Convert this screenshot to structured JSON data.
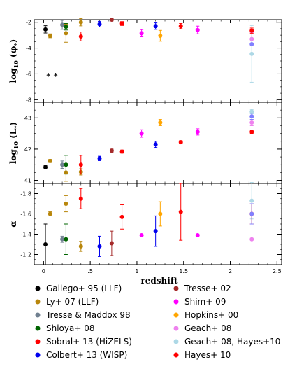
{
  "chart_data": [
    {
      "type": "scatter",
      "ylabel": "log10(φ*)",
      "ylim": [
        -8.2,
        -1.8
      ],
      "yticks": [
        -8,
        -6,
        -4,
        -2
      ],
      "tick_labels": [
        "-8",
        "-6",
        "-4",
        "-2"
      ],
      "annotation": "* *",
      "series": [
        {
          "name": "Gallego+ 95 (LLF)",
          "color": "#000000",
          "points": [
            {
              "x": 0.02,
              "y": -2.55,
              "err": 0.28
            }
          ]
        },
        {
          "name": "Ly+ 07 (LLF)",
          "color": "#b8860b",
          "points": [
            {
              "x": 0.07,
              "y": -3.05,
              "err": 0.15
            },
            {
              "x": 0.24,
              "y": -2.85,
              "err": 0.7
            },
            {
              "x": 0.4,
              "y": -2.0,
              "err": 0.28
            }
          ]
        },
        {
          "name": "Tresse & Maddox 98",
          "color": "#708090",
          "points": [
            {
              "x": 0.2,
              "y": -2.2,
              "err": 0.35
            }
          ]
        },
        {
          "name": "Shioya+ 08",
          "color": "#006400",
          "points": [
            {
              "x": 0.24,
              "y": -2.35,
              "err": 0.25
            }
          ]
        },
        {
          "name": "Sobral+ 13 (HiZELS)",
          "color": "#ff0000",
          "points": [
            {
              "x": 0.4,
              "y": -3.1,
              "err": 0.35
            },
            {
              "x": 0.84,
              "y": -2.1,
              "err": 0.15
            },
            {
              "x": 1.47,
              "y": -2.3,
              "err": 0.2
            }
          ]
        },
        {
          "name": "Colbert+ 13 (WISP)",
          "color": "#0000ee",
          "points": [
            {
              "x": 0.6,
              "y": -2.15,
              "err": 0.22
            },
            {
              "x": 1.2,
              "y": -2.3,
              "err": 0.25
            }
          ]
        },
        {
          "name": "Tresse+ 02",
          "color": "#a52a2a",
          "points": [
            {
              "x": 0.73,
              "y": -1.8,
              "err": 0.1
            }
          ]
        },
        {
          "name": "Shim+ 09",
          "color": "#ff00ff",
          "points": [
            {
              "x": 1.05,
              "y": -2.85,
              "err": 0.28
            },
            {
              "x": 1.65,
              "y": -2.6,
              "err": 0.3
            }
          ]
        },
        {
          "name": "Hopkins+ 00",
          "color": "#ffa500",
          "points": [
            {
              "x": 1.25,
              "y": -3.05,
              "err": 0.42
            }
          ]
        },
        {
          "name": "Geach+ 08",
          "color": "#ee82ee",
          "points": [
            {
              "x": 2.23,
              "y": -3.3,
              "err": 0.5
            }
          ]
        },
        {
          "name": "Geach+ 08, Hayes+10",
          "color": "#add8e6",
          "points": [
            {
              "x": 2.23,
              "y": -4.45,
              "err": 2.2
            }
          ]
        },
        {
          "name": "Hayes+ 10",
          "color": "#ff0000",
          "points": [
            {
              "x": 2.23,
              "y": -2.65,
              "err": 0.2
            }
          ]
        },
        {
          "name": "",
          "color": "#8080ff",
          "points": [
            {
              "x": 2.23,
              "y": -3.7,
              "err": 0.0
            }
          ]
        }
      ]
    },
    {
      "type": "scatter",
      "ylabel": "log10(L*)",
      "ylim": [
        40.9,
        43.5
      ],
      "yticks": [
        41,
        42,
        43
      ],
      "tick_labels": [
        "41",
        "42",
        "43"
      ],
      "series": [
        {
          "name": "Gallego+ 95 (LLF)",
          "color": "#000000",
          "points": [
            {
              "x": 0.02,
              "y": 41.42,
              "err": 0.05
            }
          ]
        },
        {
          "name": "Ly+ 07 (LLF)",
          "color": "#b8860b",
          "points": [
            {
              "x": 0.07,
              "y": 41.62,
              "err": 0.05
            },
            {
              "x": 0.24,
              "y": 41.25,
              "err": 0.28
            },
            {
              "x": 0.4,
              "y": 41.27,
              "err": 0.1
            }
          ]
        },
        {
          "name": "Tresse & Maddox 98",
          "color": "#708090",
          "points": [
            {
              "x": 0.2,
              "y": 41.5,
              "err": 0.12
            }
          ]
        },
        {
          "name": "Shioya+ 08",
          "color": "#006400",
          "points": [
            {
              "x": 0.24,
              "y": 41.5,
              "err": 0.3
            }
          ]
        },
        {
          "name": "Sobral+ 13 (HiZELS)",
          "color": "#ff0000",
          "points": [
            {
              "x": 0.4,
              "y": 41.5,
              "err": 0.3
            },
            {
              "x": 0.84,
              "y": 41.92,
              "err": 0.05
            },
            {
              "x": 1.47,
              "y": 42.22,
              "err": 0.05
            }
          ]
        },
        {
          "name": "Colbert+ 13 (WISP)",
          "color": "#0000ee",
          "points": [
            {
              "x": 0.6,
              "y": 41.7,
              "err": 0.07
            },
            {
              "x": 1.2,
              "y": 42.15,
              "err": 0.1
            }
          ]
        },
        {
          "name": "Tresse+ 02",
          "color": "#a52a2a",
          "points": [
            {
              "x": 0.73,
              "y": 41.95,
              "err": 0.05
            }
          ]
        },
        {
          "name": "Shim+ 09",
          "color": "#ff00ff",
          "points": [
            {
              "x": 1.05,
              "y": 42.5,
              "err": 0.12
            },
            {
              "x": 1.65,
              "y": 42.55,
              "err": 0.1
            }
          ]
        },
        {
          "name": "Hopkins+ 00",
          "color": "#ffa500",
          "points": [
            {
              "x": 1.25,
              "y": 42.85,
              "err": 0.1
            }
          ]
        },
        {
          "name": "Geach+ 08",
          "color": "#ee82ee",
          "points": [
            {
              "x": 2.23,
              "y": 42.85,
              "err": 0.1
            }
          ]
        },
        {
          "name": "Geach+ 08, Hayes+10",
          "color": "#add8e6",
          "points": [
            {
              "x": 2.23,
              "y": 43.2,
              "err": 0.07
            }
          ]
        },
        {
          "name": "Hayes+ 10",
          "color": "#ff0000",
          "points": [
            {
              "x": 2.23,
              "y": 42.55,
              "err": 0.05
            }
          ]
        },
        {
          "name": "",
          "color": "#8080ff",
          "points": [
            {
              "x": 2.23,
              "y": 43.05,
              "err": 0.1
            }
          ]
        }
      ]
    },
    {
      "type": "scatter",
      "ylabel": "α",
      "xlabel": "redshift",
      "xlim": [
        -0.1,
        2.55
      ],
      "xticks": [
        0,
        0.5,
        1,
        1.5,
        2,
        2.5
      ],
      "xtick_labels": [
        "0",
        ".5",
        "1",
        "1.5",
        "2",
        "2.5"
      ],
      "ylim": [
        -1.1,
        -1.9
      ],
      "yticks": [
        -1.2,
        -1.4,
        -1.6,
        -1.8
      ],
      "tick_labels": [
        "-1.2",
        "-1.4",
        "-1.6",
        "-1.8"
      ],
      "series": [
        {
          "name": "Gallego+ 95 (LLF)",
          "color": "#000000",
          "points": [
            {
              "x": 0.02,
              "y": -1.3,
              "err": 0.2
            }
          ]
        },
        {
          "name": "Ly+ 07 (LLF)",
          "color": "#b8860b",
          "points": [
            {
              "x": 0.07,
              "y": -1.6,
              "err": 0.02
            },
            {
              "x": 0.24,
              "y": -1.7,
              "err": 0.08
            },
            {
              "x": 0.4,
              "y": -1.28,
              "err": 0.05
            }
          ]
        },
        {
          "name": "Tresse & Maddox 98",
          "color": "#708090",
          "points": [
            {
              "x": 0.2,
              "y": -1.35,
              "err": 0.03
            }
          ]
        },
        {
          "name": "Shioya+ 08",
          "color": "#006400",
          "points": [
            {
              "x": 0.24,
              "y": -1.35,
              "err": 0.15
            }
          ]
        },
        {
          "name": "Sobral+ 13 (HiZELS)",
          "color": "#ff0000",
          "points": [
            {
              "x": 0.4,
              "y": -1.75,
              "err": 0.1
            },
            {
              "x": 0.84,
              "y": -1.57,
              "err": 0.12
            },
            {
              "x": 1.47,
              "y": -1.62,
              "err": 0.28
            }
          ]
        },
        {
          "name": "Colbert+ 13 (WISP)",
          "color": "#0000ee",
          "points": [
            {
              "x": 0.6,
              "y": -1.28,
              "err": 0.1
            },
            {
              "x": 1.2,
              "y": -1.43,
              "err": 0.15
            }
          ]
        },
        {
          "name": "Tresse+ 02",
          "color": "#a52a2a",
          "points": [
            {
              "x": 0.73,
              "y": -1.31,
              "err": 0.12
            }
          ]
        },
        {
          "name": "Shim+ 09",
          "color": "#ff00ff",
          "points": [
            {
              "x": 1.05,
              "y": -1.39,
              "err": 0.0
            },
            {
              "x": 1.65,
              "y": -1.39,
              "err": 0.0
            }
          ]
        },
        {
          "name": "Hopkins+ 00",
          "color": "#ffa500",
          "points": [
            {
              "x": 1.25,
              "y": -1.6,
              "err": 0.12
            }
          ]
        },
        {
          "name": "Geach+ 08",
          "color": "#ee82ee",
          "points": [
            {
              "x": 2.23,
              "y": -1.35,
              "err": 0.0
            }
          ]
        },
        {
          "name": "Geach+ 08, Hayes+10",
          "color": "#add8e6",
          "points": [
            {
              "x": 2.23,
              "y": -1.73,
              "err": 0.18
            }
          ]
        },
        {
          "name": "Hayes+ 10",
          "color": "#ff0000",
          "points": [
            {
              "x": 2.23,
              "y": -1.6,
              "err": 0.1
            }
          ]
        },
        {
          "name": "",
          "color": "#8080ff",
          "points": [
            {
              "x": 2.23,
              "y": -1.6,
              "err": 0.1
            }
          ]
        }
      ]
    }
  ],
  "legend": {
    "left": [
      {
        "label": "Gallego+ 95 (LLF)",
        "color": "#000000"
      },
      {
        "label": "Ly+ 07 (LLF)",
        "color": "#b8860b"
      },
      {
        "label": "Tresse & Maddox 98",
        "color": "#708090"
      },
      {
        "label": "Shioya+ 08",
        "color": "#006400"
      },
      {
        "label": "Sobral+ 13 (HiZELS)",
        "color": "#ff0000"
      },
      {
        "label": "Colbert+ 13 (WISP)",
        "color": "#0000ee"
      }
    ],
    "right": [
      {
        "label": "Tresse+ 02",
        "color": "#a52a2a"
      },
      {
        "label": "Shim+ 09",
        "color": "#ff00ff"
      },
      {
        "label": "Hopkins+ 00",
        "color": "#ffa500"
      },
      {
        "label": "Geach+ 08",
        "color": "#ee82ee"
      },
      {
        "label": "Geach+ 08, Hayes+10",
        "color": "#add8e6"
      },
      {
        "label": "Hayes+ 10",
        "color": "#ff0000"
      }
    ]
  }
}
